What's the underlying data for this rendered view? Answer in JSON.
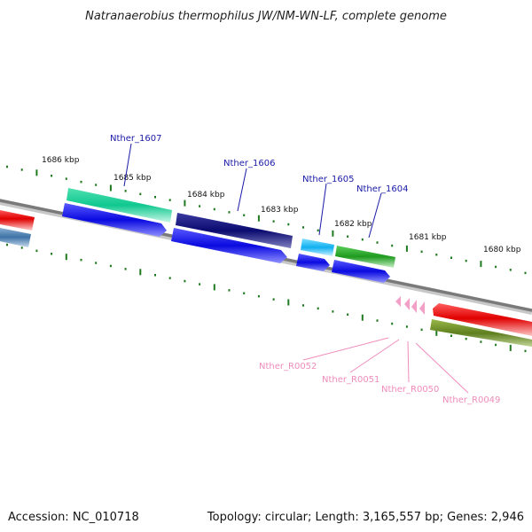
{
  "title": "Natranaerobius thermophilus JW/NM-WN-LF, complete genome",
  "footer": {
    "accession": "Accession: NC_010718",
    "summary": "Topology: circular; Length: 3,165,557 bp; Genes: 2,946"
  },
  "ticks": [
    "1686 kbp",
    "1685 kbp",
    "1684 kbp",
    "1683 kbp",
    "1682 kbp",
    "1681 kbp",
    "1680 kbp"
  ],
  "genes": [
    "Nther_1607",
    "Nther_1606",
    "Nther_1605",
    "Nther_1604"
  ],
  "rnas": [
    "Nther_R0052",
    "Nther_R0051",
    "Nther_R0050",
    "Nther_R0049"
  ],
  "colors": {
    "backbone": "#808080",
    "tick": "#1f7a1f",
    "cds": "#1010e8",
    "gene_label": "#1a1aa8",
    "rna_label": "#f08cbc",
    "trna": "#f2a0c8"
  }
}
